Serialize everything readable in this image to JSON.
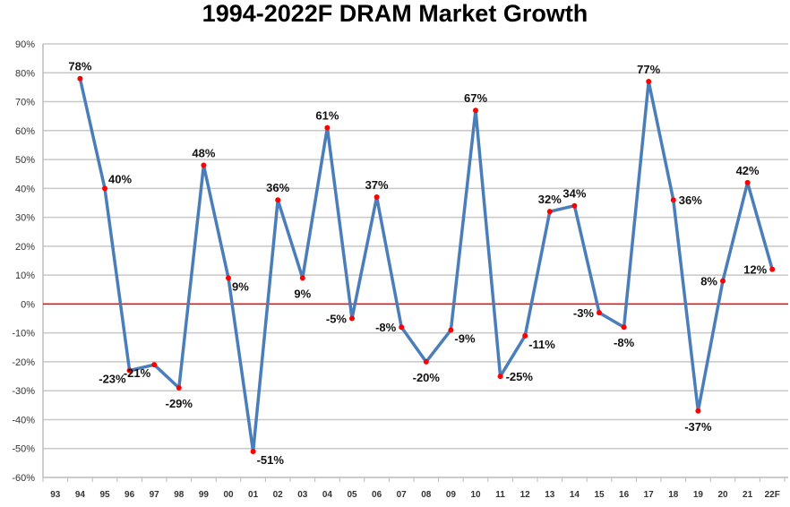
{
  "chart_data": {
    "type": "line",
    "title": "1994-2022F DRAM Market Growth",
    "xlabel": "",
    "ylabel": "",
    "categories": [
      "93",
      "94",
      "95",
      "96",
      "97",
      "98",
      "99",
      "00",
      "01",
      "02",
      "03",
      "04",
      "05",
      "06",
      "07",
      "08",
      "09",
      "10",
      "11",
      "12",
      "13",
      "14",
      "15",
      "16",
      "17",
      "18",
      "19",
      "20",
      "21",
      "22F"
    ],
    "series": [
      {
        "values": [
          null,
          78,
          40,
          -23,
          -21,
          -29,
          48,
          9,
          -51,
          36,
          9,
          61,
          -5,
          37,
          -8,
          -20,
          -9,
          67,
          -25,
          -11,
          32,
          34,
          -3,
          -8,
          77,
          36,
          -37,
          8,
          42,
          12
        ],
        "labels": [
          "",
          "78%",
          "40%",
          "-23%",
          "-21%",
          "-29%",
          "48%",
          "9%",
          "-51%",
          "36%",
          "9%",
          "61%",
          "-5%",
          "37%",
          "-8%",
          "-20%",
          "-9%",
          "67%",
          "-25%",
          "-11%",
          "32%",
          "34%",
          "-3%",
          "-8%",
          "77%",
          "36%",
          "-37%",
          "8%",
          "42%",
          "12%"
        ]
      }
    ],
    "ylim": [
      -60,
      90
    ],
    "ytick_step": 10,
    "ytick_labels": [
      "-60%",
      "-50%",
      "-40%",
      "-30%",
      "-20%",
      "-10%",
      "0%",
      "10%",
      "20%",
      "30%",
      "40%",
      "50%",
      "60%",
      "70%",
      "80%",
      "90%"
    ],
    "grid": "horizontal",
    "reference_line": 0,
    "colors": {
      "line": "#4a7ebb",
      "marker": "#ff0000",
      "zero_line": "#ff0000",
      "grid": "#c8c8c8"
    }
  }
}
